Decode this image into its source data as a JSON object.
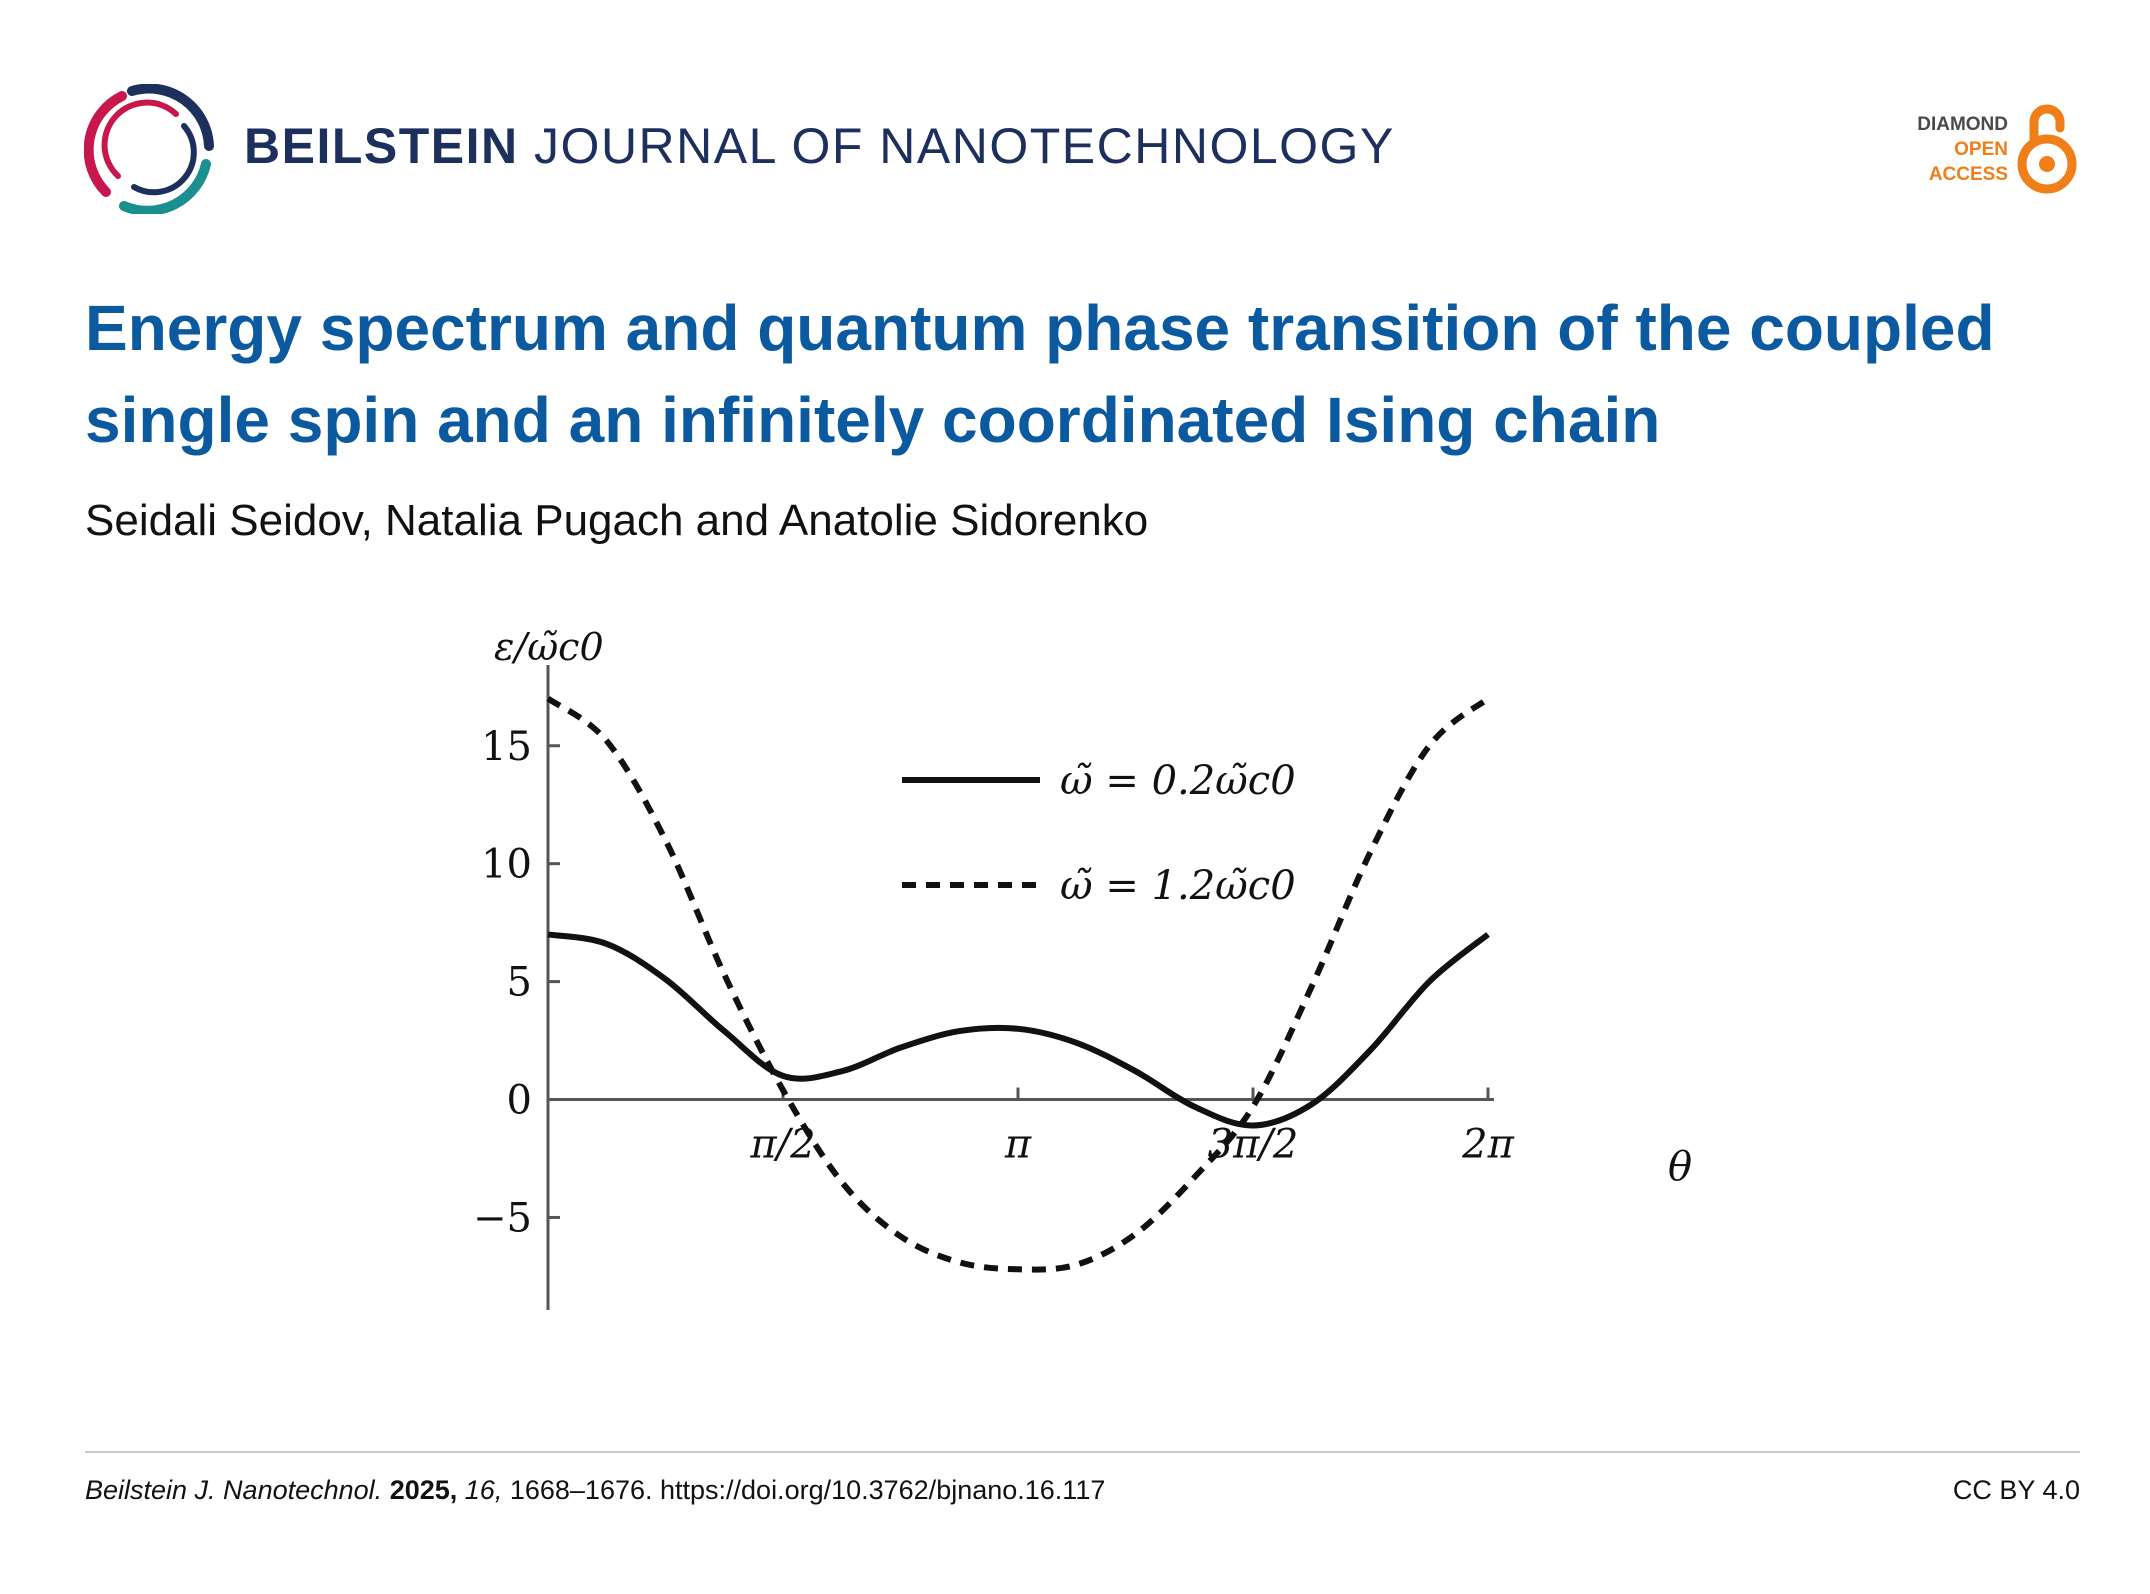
{
  "header": {
    "journal_bold": "BEILSTEIN",
    "journal_rest": "JOURNAL OF NANOTECHNOLOGY",
    "badge": {
      "line1": "DIAMOND",
      "line2": "OPEN",
      "line3": "ACCESS"
    },
    "colors": {
      "navy": "#1d2f5c",
      "crimson": "#c8174a",
      "teal": "#1a8f8f",
      "orange": "#f07f1a"
    }
  },
  "article": {
    "title": "Energy spectrum and quantum phase transition of the coupled single spin and an infinitely coordinated Ising chain",
    "authors": "Seidali Seidov, Natalia Pugach and Anatolie Sidorenko",
    "title_color": "#0b5aa0"
  },
  "footer": {
    "journal_abbrev": "Beilstein J. Nanotechnol.",
    "year": "2025,",
    "volume": "16,",
    "pages_doi": "1668–1676. https://doi.org/10.3762/bjnano.16.117",
    "license": "CC BY 4.0"
  },
  "chart_data": {
    "type": "line",
    "title": "",
    "xlabel": "θ",
    "ylabel": "ε/ω̃c0",
    "xlim": [
      0,
      6.2832
    ],
    "ylim": [
      -8.5,
      18
    ],
    "x_ticks": [
      {
        "value": 1.5708,
        "label": "π/2"
      },
      {
        "value": 3.1416,
        "label": "π"
      },
      {
        "value": 4.7124,
        "label": "3π/2"
      },
      {
        "value": 6.2832,
        "label": "2π"
      }
    ],
    "y_ticks": [
      {
        "value": -5,
        "label": "−5"
      },
      {
        "value": 0,
        "label": "0"
      },
      {
        "value": 5,
        "label": "5"
      },
      {
        "value": 10,
        "label": "10"
      },
      {
        "value": 15,
        "label": "15"
      }
    ],
    "legend_position": "top-center",
    "grid": false,
    "x": [
      0,
      0.3927,
      0.7854,
      1.1781,
      1.5708,
      1.9635,
      2.3562,
      2.7489,
      3.1416,
      3.5343,
      3.927,
      4.3197,
      4.7124,
      5.1051,
      5.4978,
      5.8905,
      6.2832
    ],
    "series": [
      {
        "name": "ω̃ = 0.2ω̃c0",
        "style": "solid",
        "values": [
          7.0,
          6.6,
          5.1,
          2.9,
          1.0,
          1.2,
          2.2,
          2.9,
          3.0,
          2.4,
          1.2,
          -0.3,
          -1.1,
          -0.2,
          2.1,
          5.0,
          7.0
        ]
      },
      {
        "name": "ω̃ = 1.2ω̃c0",
        "style": "dashed",
        "values": [
          17.0,
          15.2,
          11.0,
          5.3,
          0.4,
          -3.5,
          -5.8,
          -6.9,
          -7.2,
          -7.0,
          -5.7,
          -3.3,
          -0.3,
          4.8,
          10.5,
          15.0,
          17.0
        ]
      }
    ]
  }
}
